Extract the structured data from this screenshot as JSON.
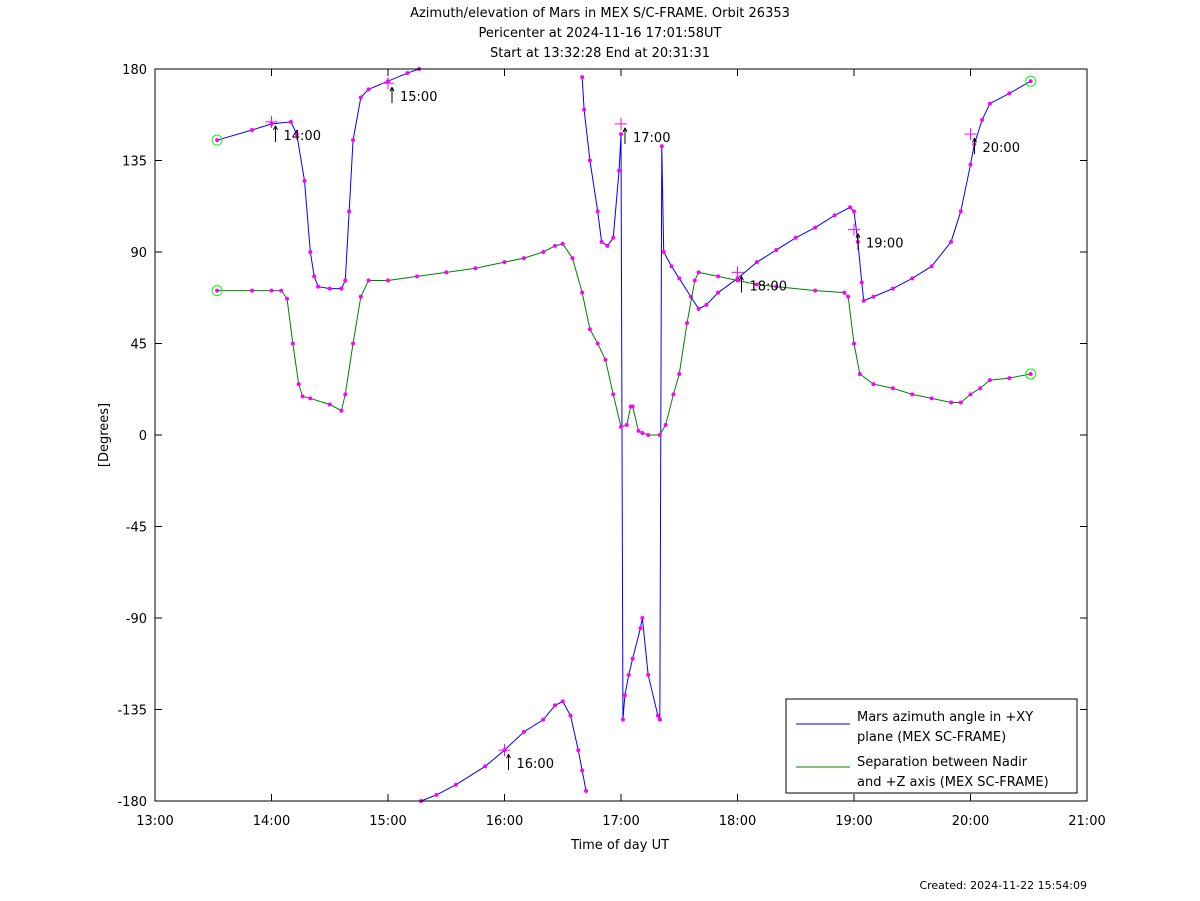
{
  "colors": {
    "azimuth": "#0000ff",
    "separation": "#008000",
    "marker": "#ff00ff",
    "endpoint": "#00ff00",
    "axis": "#000000",
    "background": "#ffffff"
  },
  "chart_data": {
    "type": "line",
    "title": "Azimuth/elevation of Mars in MEX S/C-FRAME.  Orbit 26353",
    "subtitle_1": "Pericenter at 2024-11-16 17:01:58UT",
    "subtitle_2": "Start at 13:32:28 End at 20:31:31",
    "xlabel": "Time of day UT",
    "ylabel": "[Degrees]",
    "xlim": [
      "13:00",
      "21:00"
    ],
    "ylim": [
      -180,
      180
    ],
    "x_ticks": [
      "13:00",
      "14:00",
      "15:00",
      "16:00",
      "17:00",
      "18:00",
      "19:00",
      "20:00",
      "21:00"
    ],
    "y_ticks": [
      "180",
      "135",
      "90",
      "45",
      "0",
      "-45",
      "-90",
      "-135",
      "-180"
    ],
    "grid": false,
    "legend_position": "bottom-right",
    "series": [
      {
        "name": "Mars azimuth angle in +XY plane (MEX SC-FRAME)",
        "legend_line1": "Mars azimuth angle in +XY",
        "legend_line2": "plane (MEX SC-FRAME)",
        "points": [
          [
            "13:32",
            145
          ],
          [
            "13:50",
            150
          ],
          [
            "14:00",
            153
          ],
          [
            "14:10",
            154
          ],
          [
            "14:13",
            148
          ],
          [
            "14:17",
            125
          ],
          [
            "14:20",
            90
          ],
          [
            "14:22",
            78
          ],
          [
            "14:24",
            73
          ],
          [
            "14:30",
            72
          ],
          [
            "14:36",
            72
          ],
          [
            "14:38",
            76
          ],
          [
            "14:40",
            110
          ],
          [
            "14:42",
            145
          ],
          [
            "14:46",
            166
          ],
          [
            "14:50",
            170
          ],
          [
            "15:00",
            174
          ],
          [
            "15:10",
            178
          ],
          [
            "15:16",
            180
          ],
          null,
          [
            "15:17",
            -180
          ],
          [
            "15:25",
            -177
          ],
          [
            "15:35",
            -172
          ],
          [
            "15:50",
            -163
          ],
          [
            "16:00",
            -155
          ],
          [
            "16:10",
            -146
          ],
          [
            "16:20",
            -140
          ],
          [
            "16:26",
            -133
          ],
          [
            "16:30",
            -131
          ],
          [
            "16:34",
            -138
          ],
          [
            "16:38",
            -155
          ],
          [
            "16:40",
            -165
          ],
          [
            "16:42",
            -175
          ],
          null,
          [
            "16:40",
            176
          ],
          [
            "16:41",
            160
          ],
          [
            "16:44",
            135
          ],
          [
            "16:48",
            110
          ],
          [
            "16:50",
            95
          ],
          [
            "16:53",
            93
          ],
          [
            "16:56",
            97
          ],
          [
            "16:59",
            130
          ],
          [
            "17:00",
            148
          ],
          [
            "17:01",
            -140
          ],
          [
            "17:02",
            -128
          ],
          [
            "17:04",
            -118
          ],
          [
            "17:06",
            -110
          ],
          [
            "17:10",
            -95
          ],
          [
            "17:11",
            -90
          ],
          [
            "17:14",
            -118
          ],
          [
            "17:19",
            -138
          ],
          [
            "17:20",
            -140
          ],
          [
            "17:21",
            142
          ],
          [
            "17:22",
            90
          ],
          [
            "17:26",
            83
          ],
          [
            "17:30",
            77
          ],
          [
            "17:36",
            68
          ],
          [
            "17:40",
            62
          ],
          [
            "17:44",
            64
          ],
          [
            "17:50",
            70
          ],
          [
            "18:00",
            77
          ],
          [
            "18:10",
            85
          ],
          [
            "18:20",
            91
          ],
          [
            "18:30",
            97
          ],
          [
            "18:40",
            102
          ],
          [
            "18:50",
            108
          ],
          [
            "18:58",
            112
          ],
          [
            "19:00",
            110
          ],
          [
            "19:02",
            95
          ],
          [
            "19:04",
            75
          ],
          [
            "19:05",
            66
          ],
          [
            "19:10",
            68
          ],
          [
            "19:20",
            72
          ],
          [
            "19:30",
            77
          ],
          [
            "19:40",
            83
          ],
          [
            "19:50",
            95
          ],
          [
            "19:55",
            110
          ],
          [
            "20:00",
            133
          ],
          [
            "20:02",
            143
          ],
          [
            "20:06",
            155
          ],
          [
            "20:10",
            163
          ],
          [
            "20:20",
            168
          ],
          [
            "20:31",
            174
          ]
        ]
      },
      {
        "name": "Separation between Nadir and +Z axis (MEX SC-FRAME)",
        "legend_line1": "Separation between Nadir",
        "legend_line2": "and +Z axis (MEX SC-FRAME)",
        "points": [
          [
            "13:32",
            71
          ],
          [
            "13:50",
            71
          ],
          [
            "14:00",
            71
          ],
          [
            "14:05",
            71
          ],
          [
            "14:08",
            67
          ],
          [
            "14:11",
            45
          ],
          [
            "14:14",
            25
          ],
          [
            "14:16",
            19
          ],
          [
            "14:20",
            18
          ],
          [
            "14:30",
            15
          ],
          [
            "14:36",
            12
          ],
          [
            "14:38",
            20
          ],
          [
            "14:42",
            45
          ],
          [
            "14:46",
            68
          ],
          [
            "14:50",
            76
          ],
          [
            "15:00",
            76
          ],
          [
            "15:15",
            78
          ],
          [
            "15:30",
            80
          ],
          [
            "15:45",
            82
          ],
          [
            "16:00",
            85
          ],
          [
            "16:10",
            87
          ],
          [
            "16:20",
            90
          ],
          [
            "16:26",
            93
          ],
          [
            "16:30",
            94
          ],
          [
            "16:35",
            87
          ],
          [
            "16:40",
            70
          ],
          [
            "16:44",
            52
          ],
          [
            "16:48",
            45
          ],
          [
            "16:52",
            37
          ],
          [
            "16:56",
            20
          ],
          [
            "17:00",
            4
          ],
          [
            "17:03",
            5
          ],
          [
            "17:05",
            14
          ],
          [
            "17:06",
            14
          ],
          [
            "17:09",
            2
          ],
          [
            "17:11",
            1
          ],
          [
            "17:14",
            0
          ],
          [
            "17:20",
            0
          ],
          [
            "17:23",
            5
          ],
          [
            "17:27",
            20
          ],
          [
            "17:30",
            30
          ],
          [
            "17:34",
            55
          ],
          [
            "17:38",
            76
          ],
          [
            "17:40",
            80
          ],
          [
            "17:50",
            78
          ],
          [
            "18:00",
            76
          ],
          [
            "18:10",
            74
          ],
          [
            "18:20",
            73
          ],
          [
            "18:40",
            71
          ],
          [
            "18:55",
            70
          ],
          [
            "18:57",
            68
          ],
          [
            "19:00",
            45
          ],
          [
            "19:03",
            30
          ],
          [
            "19:10",
            25
          ],
          [
            "19:20",
            23
          ],
          [
            "19:30",
            20
          ],
          [
            "19:40",
            18
          ],
          [
            "19:50",
            16
          ],
          [
            "19:55",
            16
          ],
          [
            "20:00",
            20
          ],
          [
            "20:05",
            23
          ],
          [
            "20:10",
            27
          ],
          [
            "20:20",
            28
          ],
          [
            "20:31",
            30
          ]
        ]
      }
    ],
    "annotations": [
      {
        "time": "14:00",
        "label": "14:00",
        "series": 0,
        "value": 154
      },
      {
        "time": "15:00",
        "label": "15:00",
        "series": 0,
        "value": 173
      },
      {
        "time": "16:00",
        "label": "16:00",
        "series": 0,
        "value": -155
      },
      {
        "time": "17:00",
        "label": "17:00",
        "series": 0,
        "value": 153
      },
      {
        "time": "18:00",
        "label": "18:00",
        "series": 1,
        "value": 80
      },
      {
        "time": "19:00",
        "label": "19:00",
        "series": 0,
        "value": 101
      },
      {
        "time": "20:00",
        "label": "20:00",
        "series": 0,
        "value": 148
      }
    ]
  },
  "footer": {
    "created": "Created: 2024-11-22 15:54:09"
  }
}
